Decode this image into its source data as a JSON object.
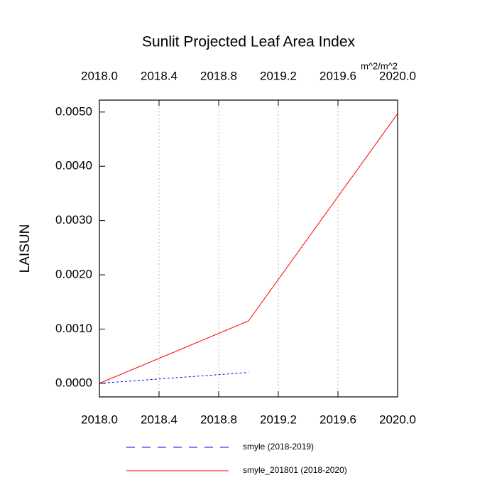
{
  "chart_data": {
    "type": "line",
    "title": "Sunlit Projected Leaf Area Index",
    "ylabel": "LAISUN",
    "units": "m^2/m^2",
    "xlim": [
      2018,
      2020
    ],
    "xticks": [
      {
        "value": 2018,
        "label": "2018.0"
      },
      {
        "value": 2018.4,
        "label": "2018.4"
      },
      {
        "value": 2018.8,
        "label": "2018.8"
      },
      {
        "value": 2019.2,
        "label": "2019.2"
      },
      {
        "value": 2019.6,
        "label": "2019.6"
      },
      {
        "value": 2020,
        "label": "2020.0"
      }
    ],
    "xtick_color_bottom": "#ff0000",
    "xtick_color_top": "#0000ff",
    "ylim": [
      -0.00025,
      0.00522
    ],
    "yticks": [
      {
        "value": 0,
        "label": "0.0000"
      },
      {
        "value": 0.001,
        "label": "0.0010"
      },
      {
        "value": 0.002,
        "label": "0.0020"
      },
      {
        "value": 0.003,
        "label": "0.0030"
      },
      {
        "value": 0.004,
        "label": "0.0040"
      },
      {
        "value": 0.005,
        "label": "0.0050"
      }
    ],
    "grid": true,
    "series": [
      {
        "name": "smyle (2018-2019)",
        "color": "#0000ff",
        "dash": true,
        "x": [
          2018,
          2019
        ],
        "values": [
          0,
          0.0002
        ]
      },
      {
        "name": "smyle_201801 (2018-2020)",
        "color": "#ff0000",
        "dash": false,
        "x": [
          2018,
          2019,
          2020
        ],
        "values": [
          0,
          0.00115,
          0.00497
        ]
      }
    ]
  }
}
